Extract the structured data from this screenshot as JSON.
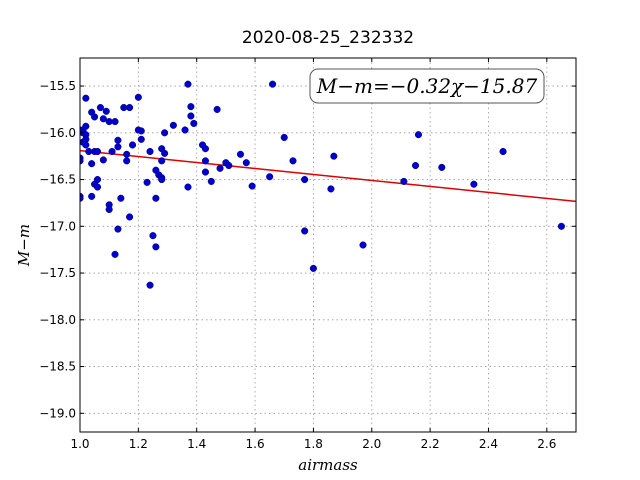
{
  "chart_data": {
    "type": "scatter",
    "title": "2020-08-25_232332",
    "xlabel": "airmass",
    "ylabel": "M−m",
    "xlim": [
      1.0,
      2.7
    ],
    "ylim": [
      -19.2,
      -15.2
    ],
    "y_inverted": true,
    "grid": true,
    "x_ticks": [
      1.0,
      1.2,
      1.4,
      1.6,
      1.8,
      2.0,
      2.2,
      2.4,
      2.6
    ],
    "x_tick_labels": [
      "1.0",
      "1.2",
      "1.4",
      "1.6",
      "1.8",
      "2.0",
      "2.2",
      "2.4",
      "2.6"
    ],
    "y_ticks": [
      -15.5,
      -16.0,
      -16.5,
      -17.0,
      -17.5,
      -18.0,
      -18.5,
      -19.0
    ],
    "y_tick_labels": [
      "−15.5",
      "−16.0",
      "−16.5",
      "−17.0",
      "−17.5",
      "−18.0",
      "−18.5",
      "−19.0"
    ],
    "annotation": "M−m=−0.32χ−15.87",
    "fit_line": {
      "slope": -0.32,
      "intercept": -15.87
    },
    "colors": {
      "points": "#0000cc",
      "fit_line": "#dd0000",
      "grid": "#999999"
    },
    "series": [
      {
        "x": [
          1.0,
          1.0,
          1.0,
          1.0,
          1.0,
          1.01,
          1.01,
          1.01,
          1.02,
          1.02,
          1.02,
          1.02,
          1.02,
          1.03,
          1.04,
          1.04,
          1.04,
          1.05,
          1.05,
          1.05,
          1.06,
          1.06,
          1.06,
          1.07,
          1.08,
          1.08,
          1.09,
          1.1,
          1.1,
          1.1,
          1.11,
          1.12,
          1.12,
          1.13,
          1.13,
          1.13,
          1.14,
          1.15,
          1.16,
          1.16,
          1.17,
          1.17,
          1.18,
          1.2,
          1.2,
          1.21,
          1.21,
          1.23,
          1.24,
          1.24,
          1.25,
          1.26,
          1.26,
          1.26,
          1.27,
          1.28,
          1.28,
          1.28,
          1.28,
          1.29,
          1.29,
          1.32,
          1.36,
          1.37,
          1.37,
          1.38,
          1.38,
          1.39,
          1.42,
          1.43,
          1.43,
          1.43,
          1.45,
          1.47,
          1.48,
          1.5,
          1.51,
          1.55,
          1.57,
          1.59,
          1.65,
          1.66,
          1.7,
          1.73,
          1.77,
          1.77,
          1.8,
          1.86,
          1.87,
          1.97,
          2.11,
          2.15,
          2.16,
          2.24,
          2.35,
          2.45,
          2.65
        ],
        "y": [
          -15.97,
          -16.27,
          -16.3,
          -16.68,
          -16.7,
          -15.97,
          -16.0,
          -16.1,
          -15.63,
          -15.93,
          -16.02,
          -16.07,
          -16.13,
          -16.2,
          -15.78,
          -16.33,
          -16.68,
          -16.2,
          -15.83,
          -16.55,
          -16.5,
          -16.58,
          -16.2,
          -15.73,
          -15.85,
          -16.29,
          -15.77,
          -15.88,
          -16.77,
          -16.82,
          -16.2,
          -15.88,
          -17.3,
          -16.08,
          -16.15,
          -17.03,
          -16.7,
          -15.73,
          -16.23,
          -16.3,
          -15.73,
          -16.9,
          -16.13,
          -15.62,
          -15.97,
          -15.98,
          -16.07,
          -16.53,
          -16.2,
          -17.63,
          -17.1,
          -16.7,
          -16.4,
          -17.22,
          -16.45,
          -16.17,
          -16.48,
          -16.5,
          -16.3,
          -16.0,
          -16.22,
          -15.92,
          -15.97,
          -15.48,
          -16.58,
          -15.72,
          -15.82,
          -15.9,
          -16.13,
          -16.17,
          -16.3,
          -16.42,
          -16.52,
          -15.75,
          -16.38,
          -16.32,
          -16.35,
          -16.23,
          -16.32,
          -16.57,
          -16.47,
          -15.48,
          -16.05,
          -16.3,
          -16.5,
          -17.05,
          -17.45,
          -16.6,
          -16.25,
          -17.2,
          -16.52,
          -16.35,
          -16.02,
          -16.37,
          -16.55,
          -16.2,
          -17.0
        ]
      }
    ]
  }
}
